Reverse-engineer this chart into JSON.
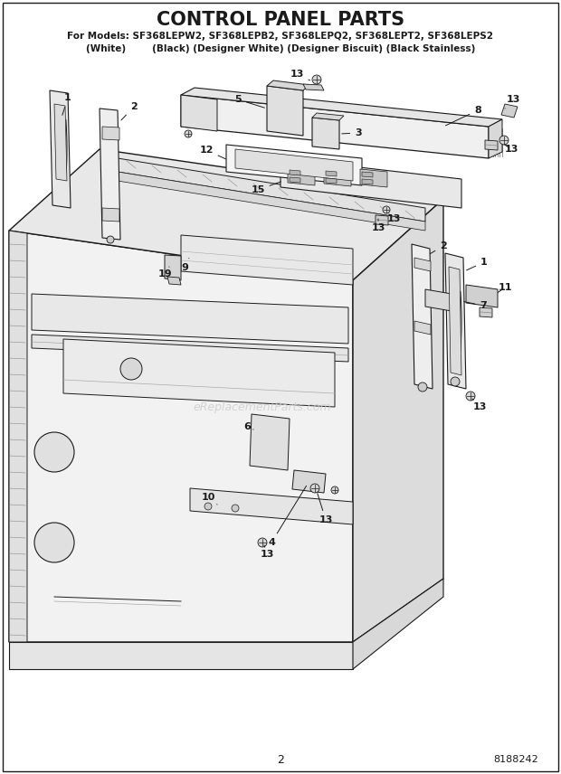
{
  "title": "CONTROL PANEL PARTS",
  "subtitle1": "For Models: SF368LEPW2, SF368LEPB2, SF368LEPQ2, SF368LEPT2, SF368LEPS2",
  "subtitle2": "(White)        (Black) (Designer White) (Designer Biscuit) (Black Stainless)",
  "page_number": "2",
  "part_number": "8188242",
  "watermark": "eReplacementParts.com",
  "bg_color": "#ffffff",
  "line_color": "#1a1a1a",
  "fig_width": 6.2,
  "fig_height": 8.56,
  "dpi": 100
}
